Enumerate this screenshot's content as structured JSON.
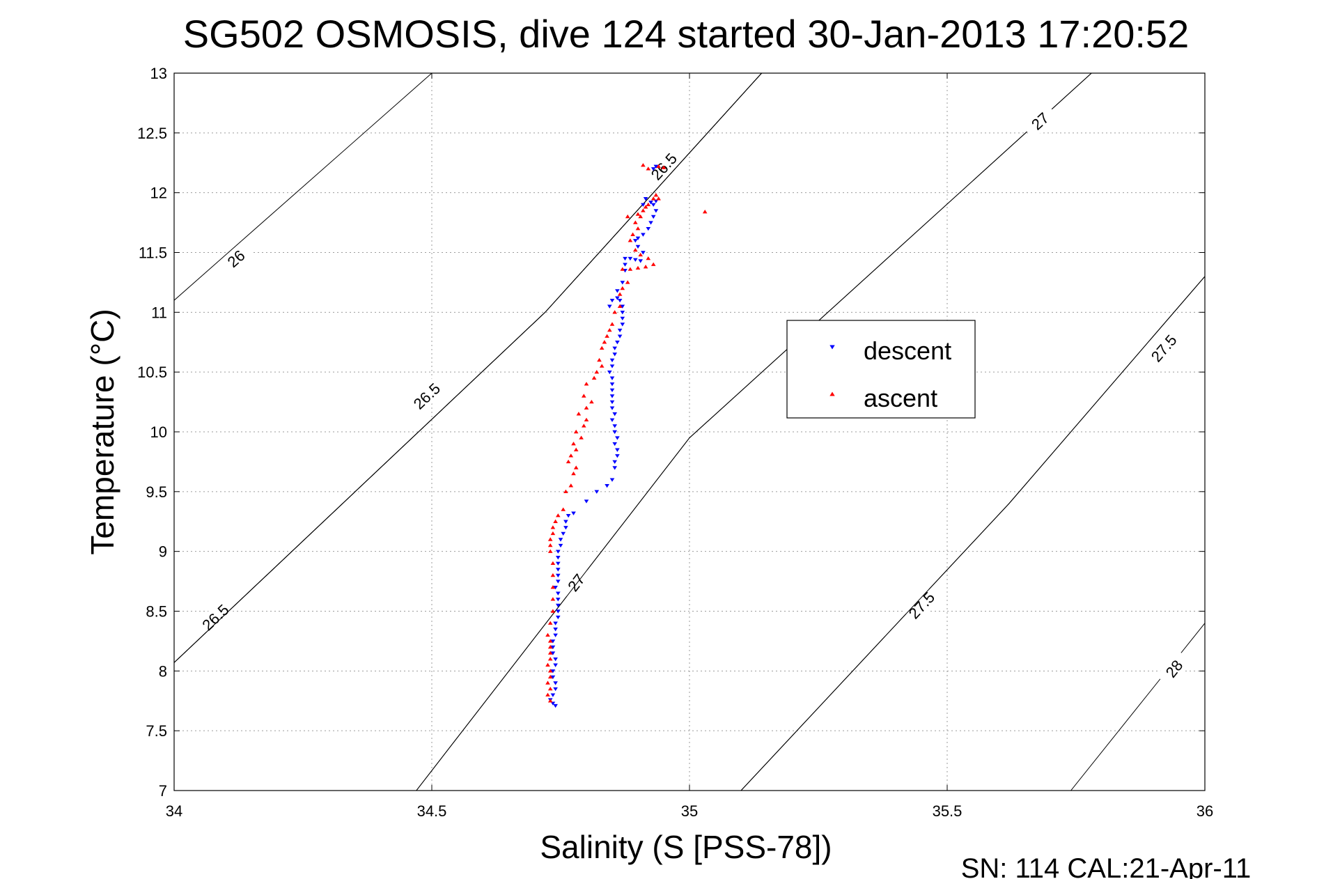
{
  "chart_data": {
    "type": "scatter",
    "title": "SG502 OSMOSIS, dive 124 started 30-Jan-2013 17:20:52",
    "xlabel": "Salinity (S [PSS-78])",
    "ylabel": "Temperature (°C)",
    "xlim": [
      34,
      36
    ],
    "ylim": [
      7,
      13
    ],
    "xticks": [
      "34",
      "34.5",
      "35",
      "35.5",
      "36"
    ],
    "yticks": [
      "7",
      "7.5",
      "8",
      "8.5",
      "9",
      "9.5",
      "10",
      "10.5",
      "11",
      "11.5",
      "12",
      "12.5",
      "13"
    ],
    "grid": true,
    "legend_position": "right",
    "footer": "SN: 114  CAL:21-Apr-11",
    "series": [
      {
        "name": "descent",
        "color": "#0000ff",
        "marker": "triangle-down",
        "points": [
          [
            34.74,
            7.71
          ],
          [
            34.735,
            7.73
          ],
          [
            34.73,
            7.76
          ],
          [
            34.735,
            7.8
          ],
          [
            34.74,
            7.85
          ],
          [
            34.74,
            7.9
          ],
          [
            34.735,
            7.95
          ],
          [
            34.735,
            8.0
          ],
          [
            34.74,
            8.05
          ],
          [
            34.74,
            8.1
          ],
          [
            34.735,
            8.15
          ],
          [
            34.735,
            8.2
          ],
          [
            34.735,
            8.25
          ],
          [
            34.74,
            8.3
          ],
          [
            34.74,
            8.35
          ],
          [
            34.74,
            8.4
          ],
          [
            34.745,
            8.45
          ],
          [
            34.745,
            8.5
          ],
          [
            34.745,
            8.55
          ],
          [
            34.745,
            8.6
          ],
          [
            34.745,
            8.65
          ],
          [
            34.74,
            8.7
          ],
          [
            34.745,
            8.75
          ],
          [
            34.745,
            8.8
          ],
          [
            34.745,
            8.85
          ],
          [
            34.745,
            8.9
          ],
          [
            34.745,
            8.95
          ],
          [
            34.745,
            9.0
          ],
          [
            34.75,
            9.05
          ],
          [
            34.75,
            9.1
          ],
          [
            34.755,
            9.15
          ],
          [
            34.76,
            9.2
          ],
          [
            34.76,
            9.25
          ],
          [
            34.765,
            9.3
          ],
          [
            34.775,
            9.32
          ],
          [
            34.8,
            9.42
          ],
          [
            34.82,
            9.5
          ],
          [
            34.84,
            9.55
          ],
          [
            34.85,
            9.6
          ],
          [
            34.855,
            9.7
          ],
          [
            34.855,
            9.75
          ],
          [
            34.86,
            9.8
          ],
          [
            34.86,
            9.85
          ],
          [
            34.855,
            9.9
          ],
          [
            34.86,
            9.95
          ],
          [
            34.855,
            10.0
          ],
          [
            34.855,
            10.05
          ],
          [
            34.85,
            10.1
          ],
          [
            34.855,
            10.15
          ],
          [
            34.85,
            10.2
          ],
          [
            34.85,
            10.25
          ],
          [
            34.85,
            10.3
          ],
          [
            34.85,
            10.35
          ],
          [
            34.85,
            10.4
          ],
          [
            34.85,
            10.45
          ],
          [
            34.845,
            10.5
          ],
          [
            34.85,
            10.55
          ],
          [
            34.85,
            10.6
          ],
          [
            34.855,
            10.65
          ],
          [
            34.855,
            10.7
          ],
          [
            34.86,
            10.75
          ],
          [
            34.865,
            10.8
          ],
          [
            34.865,
            10.85
          ],
          [
            34.87,
            10.9
          ],
          [
            34.87,
            10.95
          ],
          [
            34.87,
            11.0
          ],
          [
            34.87,
            11.05
          ],
          [
            34.865,
            11.1
          ],
          [
            34.86,
            11.12
          ],
          [
            34.85,
            11.1
          ],
          [
            34.845,
            11.05
          ],
          [
            34.86,
            11.18
          ],
          [
            34.87,
            11.25
          ],
          [
            34.875,
            11.35
          ],
          [
            34.875,
            11.4
          ],
          [
            34.875,
            11.45
          ],
          [
            34.885,
            11.45
          ],
          [
            34.895,
            11.44
          ],
          [
            34.905,
            11.43
          ],
          [
            34.91,
            11.5
          ],
          [
            34.9,
            11.55
          ],
          [
            34.895,
            11.6
          ],
          [
            34.9,
            11.62
          ],
          [
            34.91,
            11.65
          ],
          [
            34.92,
            11.7
          ],
          [
            34.925,
            11.75
          ],
          [
            34.93,
            11.8
          ],
          [
            34.935,
            11.85
          ],
          [
            34.93,
            11.9
          ],
          [
            34.925,
            11.92
          ],
          [
            34.915,
            11.95
          ],
          [
            34.91,
            11.9
          ],
          [
            34.935,
            11.93
          ],
          [
            34.93,
            12.2
          ],
          [
            34.935,
            12.22
          ]
        ]
      },
      {
        "name": "ascent",
        "color": "#ff0000",
        "marker": "triangle-up",
        "points": [
          [
            34.73,
            7.75
          ],
          [
            34.725,
            7.8
          ],
          [
            34.73,
            7.85
          ],
          [
            34.725,
            7.9
          ],
          [
            34.73,
            7.95
          ],
          [
            34.73,
            8.0
          ],
          [
            34.725,
            8.05
          ],
          [
            34.73,
            8.1
          ],
          [
            34.73,
            8.15
          ],
          [
            34.73,
            8.2
          ],
          [
            34.73,
            8.25
          ],
          [
            34.725,
            8.3
          ],
          [
            34.73,
            8.4
          ],
          [
            34.735,
            8.5
          ],
          [
            34.735,
            8.6
          ],
          [
            34.735,
            8.7
          ],
          [
            34.735,
            8.8
          ],
          [
            34.735,
            8.9
          ],
          [
            34.73,
            9.0
          ],
          [
            34.73,
            9.05
          ],
          [
            34.73,
            9.1
          ],
          [
            34.735,
            9.15
          ],
          [
            34.735,
            9.2
          ],
          [
            34.74,
            9.25
          ],
          [
            34.745,
            9.3
          ],
          [
            34.755,
            9.35
          ],
          [
            34.76,
            9.5
          ],
          [
            34.77,
            9.55
          ],
          [
            34.775,
            9.65
          ],
          [
            34.78,
            9.7
          ],
          [
            34.765,
            9.75
          ],
          [
            34.77,
            9.8
          ],
          [
            34.78,
            9.85
          ],
          [
            34.775,
            9.9
          ],
          [
            34.79,
            9.95
          ],
          [
            34.78,
            10.0
          ],
          [
            34.795,
            10.05
          ],
          [
            34.8,
            10.1
          ],
          [
            34.785,
            10.15
          ],
          [
            34.8,
            10.2
          ],
          [
            34.81,
            10.25
          ],
          [
            34.795,
            10.3
          ],
          [
            34.8,
            10.4
          ],
          [
            34.815,
            10.45
          ],
          [
            34.82,
            10.5
          ],
          [
            34.83,
            10.55
          ],
          [
            34.825,
            10.6
          ],
          [
            34.83,
            10.7
          ],
          [
            34.835,
            10.75
          ],
          [
            34.84,
            10.8
          ],
          [
            34.845,
            10.85
          ],
          [
            34.85,
            10.9
          ],
          [
            34.855,
            11.0
          ],
          [
            34.865,
            11.05
          ],
          [
            34.865,
            11.15
          ],
          [
            34.87,
            11.2
          ],
          [
            34.88,
            11.25
          ],
          [
            34.87,
            11.36
          ],
          [
            34.885,
            11.36
          ],
          [
            34.9,
            11.37
          ],
          [
            34.915,
            11.38
          ],
          [
            34.93,
            11.4
          ],
          [
            34.92,
            11.45
          ],
          [
            34.905,
            11.48
          ],
          [
            34.895,
            11.52
          ],
          [
            34.885,
            11.6
          ],
          [
            34.89,
            11.65
          ],
          [
            34.9,
            11.7
          ],
          [
            34.895,
            11.75
          ],
          [
            34.905,
            11.8
          ],
          [
            34.91,
            11.85
          ],
          [
            34.92,
            11.9
          ],
          [
            34.93,
            11.95
          ],
          [
            34.935,
            11.98
          ],
          [
            34.94,
            11.95
          ],
          [
            34.915,
            11.88
          ],
          [
            34.88,
            11.8
          ],
          [
            34.9,
            11.82
          ],
          [
            35.03,
            11.84
          ],
          [
            34.92,
            12.2
          ],
          [
            34.94,
            12.22
          ],
          [
            34.91,
            12.23
          ],
          [
            34.95,
            12.21
          ]
        ]
      }
    ],
    "density_contours": [
      {
        "label": "26",
        "points": [
          [
            34.0,
            11.1
          ],
          [
            34.5,
            13.0
          ]
        ],
        "label_at": [
          34.12,
          11.45
        ]
      },
      {
        "label": "26.5",
        "points": [
          [
            34.0,
            8.07
          ],
          [
            34.72,
            11.0
          ],
          [
            35.14,
            13.0
          ]
        ],
        "label_at": [
          34.08,
          8.45
        ]
      },
      {
        "label": "26.5",
        "points": [
          [
            34.0,
            8.07
          ],
          [
            34.72,
            11.0
          ],
          [
            35.14,
            13.0
          ]
        ],
        "label_at": [
          34.49,
          10.3
        ]
      },
      {
        "label": "26.5",
        "points": [
          [
            34.0,
            8.07
          ],
          [
            34.72,
            11.0
          ],
          [
            35.14,
            13.0
          ]
        ],
        "label_at": [
          34.95,
          12.22
        ]
      },
      {
        "label": "27",
        "points": [
          [
            34.47,
            7.0
          ],
          [
            35.0,
            9.95
          ],
          [
            35.78,
            13.0
          ]
        ],
        "label_at": [
          34.78,
          8.74
        ]
      },
      {
        "label": "27",
        "points": [
          [
            34.47,
            7.0
          ],
          [
            35.0,
            9.95
          ],
          [
            35.78,
            13.0
          ]
        ],
        "label_at": [
          35.68,
          12.6
        ]
      },
      {
        "label": "27.5",
        "points": [
          [
            35.1,
            7.0
          ],
          [
            35.62,
            9.4
          ],
          [
            36.0,
            11.3
          ]
        ],
        "label_at": [
          35.45,
          8.55
        ]
      },
      {
        "label": "27.5",
        "points": [
          [
            35.1,
            7.0
          ],
          [
            35.62,
            9.4
          ],
          [
            36.0,
            11.3
          ]
        ],
        "label_at": [
          35.92,
          10.7
        ]
      },
      {
        "label": "28",
        "points": [
          [
            35.74,
            7.0
          ],
          [
            36.0,
            8.4
          ]
        ],
        "label_at": [
          35.94,
          8.02
        ]
      }
    ]
  }
}
